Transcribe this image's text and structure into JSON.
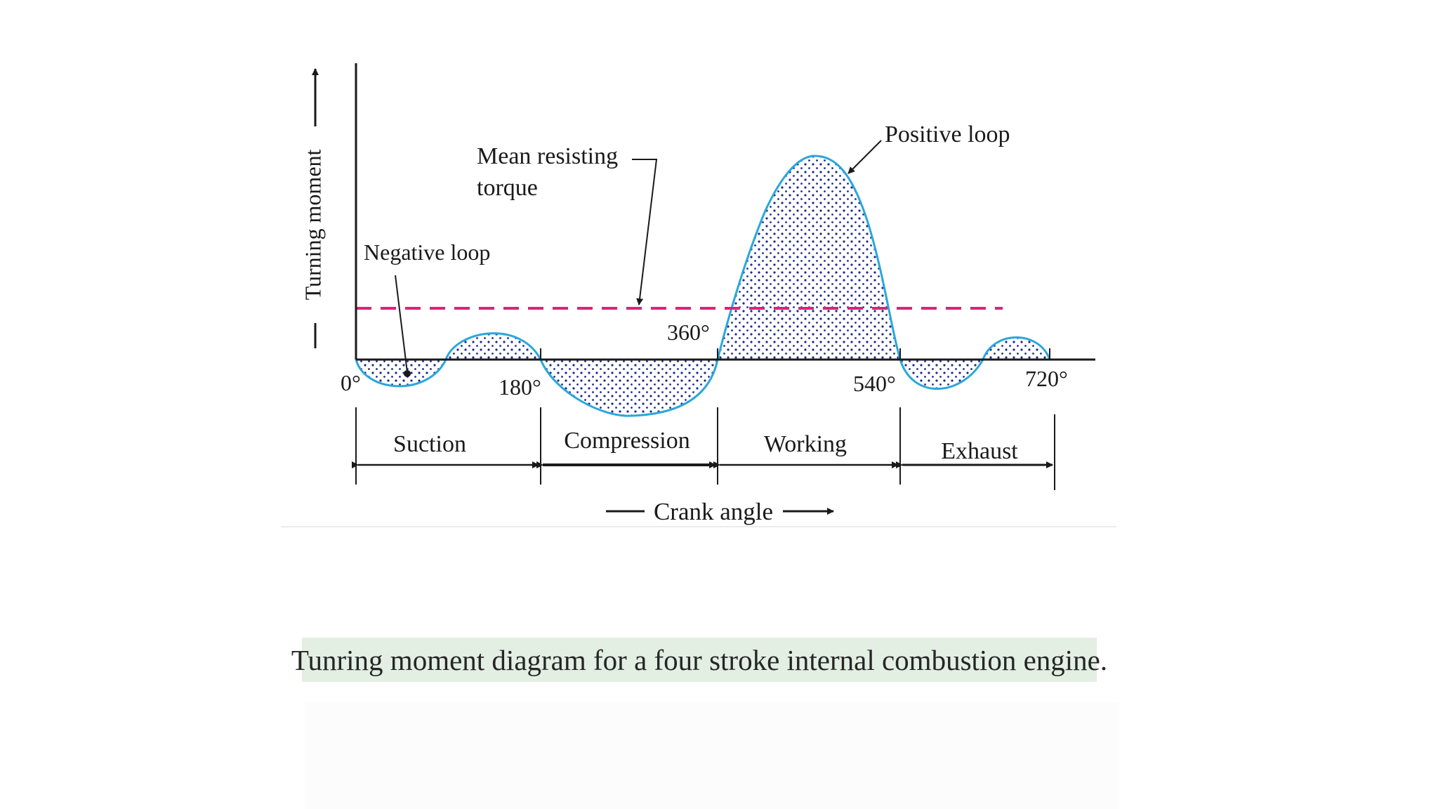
{
  "diagram": {
    "y_axis_label": "Turning moment",
    "x_axis_label": "Crank angle",
    "angle_labels": [
      "0°",
      "180°",
      "360°",
      "540°",
      "720°"
    ],
    "annotations": {
      "negative_loop": "Negative loop",
      "positive_loop": "Positive loop",
      "mean_torque_line1": "Mean resisting",
      "mean_torque_line2": "torque"
    },
    "strokes": [
      "Suction",
      "Compression",
      "Working",
      "Exhaust"
    ],
    "colors": {
      "curve": "#2aa7dc",
      "mean_line": "#e0207a",
      "dots": "#1e2a8a",
      "text": "#1a1a1a"
    }
  },
  "caption": "Tunring moment diagram for a four stroke internal combustion engine."
}
